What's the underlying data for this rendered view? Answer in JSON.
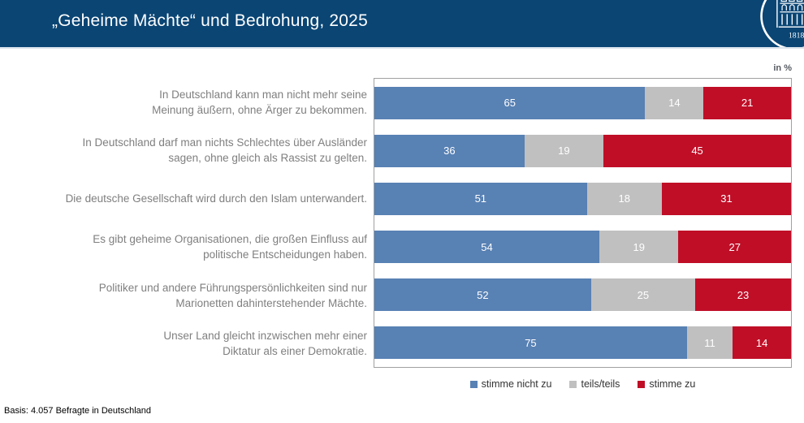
{
  "header": {
    "title": "„Geheime Mächte“ und Bedrohung, 2025",
    "logo": "university-seal",
    "logo_year": "1818"
  },
  "chart_data": {
    "type": "bar",
    "stacked": true,
    "orientation": "horizontal",
    "title": "„Geheime Mächte“ und Bedrohung, 2025",
    "unit_label": "in %",
    "xlim": [
      0,
      100
    ],
    "grid": false,
    "legend_position": "bottom",
    "categories": [
      "In Deutschland kann man nicht mehr seine\nMeinung äußern, ohne Ärger zu bekommen.",
      "In Deutschland darf man nichts Schlechtes über Ausländer\nsagen, ohne gleich als Rassist zu gelten.",
      "Die deutsche Gesellschaft wird durch den Islam unterwandert.",
      "Es gibt geheime Organisationen, die großen Einfluss auf\npolitische Entscheidungen haben.",
      "Politiker und andere Führungspersönlichkeiten sind nur\nMarionetten dahinterstehender Mächte.",
      "Unser Land gleicht inzwischen mehr einer\nDiktatur als einer Demokratie."
    ],
    "series": [
      {
        "name": "stimme nicht zu",
        "color": "#5881b4",
        "values": [
          65,
          36,
          51,
          54,
          52,
          75
        ]
      },
      {
        "name": "teils/teils",
        "color": "#c0c0c0",
        "values": [
          14,
          19,
          18,
          19,
          25,
          11
        ]
      },
      {
        "name": "stimme zu",
        "color": "#c00e27",
        "values": [
          21,
          45,
          31,
          27,
          23,
          14
        ]
      }
    ]
  },
  "footer": {
    "basis": "Basis: 4.057 Befragte in Deutschland"
  }
}
